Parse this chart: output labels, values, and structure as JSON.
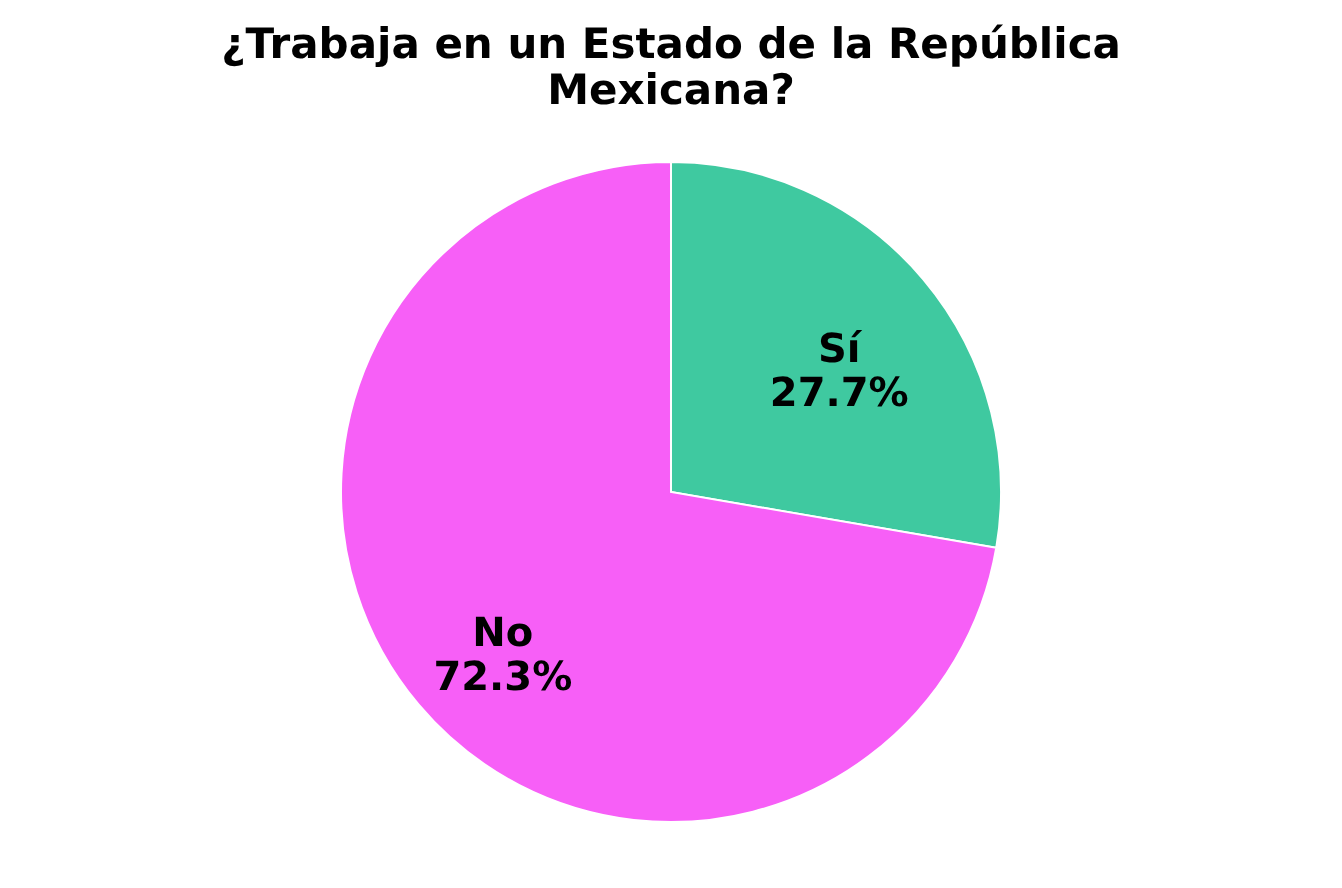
{
  "chart_data": {
    "type": "pie",
    "title": "¿Trabaja en un Estado de la República Mexicana?",
    "categories": [
      "Sí",
      "No"
    ],
    "values": [
      27.7,
      72.3
    ],
    "value_labels": [
      "27.7%",
      "72.3%"
    ],
    "colors": [
      "#3fc9a0",
      "#f75ff7"
    ],
    "legend": false
  }
}
